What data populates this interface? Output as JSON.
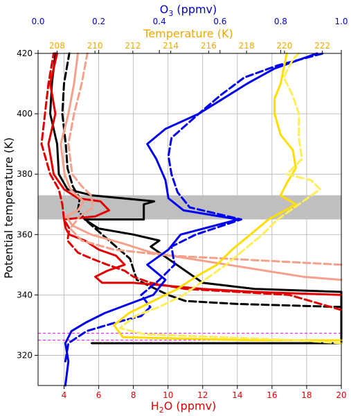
{
  "chart_data": {
    "type": "line",
    "ylabel": "Potential temperature (K)",
    "bottom_axis": {
      "label_main": "H",
      "label_sub": "2",
      "label_rest": "O (ppmv)",
      "range": [
        2.5,
        20
      ],
      "ticks": [
        4,
        6,
        8,
        10,
        12,
        14,
        16,
        18,
        20
      ],
      "color": "#e00000"
    },
    "top_axis_o3": {
      "label_main": "O",
      "label_sub": "3",
      "label_rest": " (ppmv)",
      "range": [
        0,
        1
      ],
      "ticks": [
        0.0,
        0.2,
        0.4,
        0.6,
        0.8,
        1.0
      ],
      "color": "#0000cc"
    },
    "top_axis_temp": {
      "label": "Temperature (K)",
      "range": [
        207.0,
        223.0
      ],
      "ticks": [
        208,
        210,
        212,
        214,
        216,
        218,
        220,
        222
      ],
      "color": "#f0a800"
    },
    "yaxis": {
      "range": [
        310,
        420
      ],
      "ticks": [
        320,
        340,
        360,
        380,
        400,
        420
      ]
    },
    "grid": true,
    "band": {
      "y0": 365,
      "y1": 373,
      "color": "#bfbfbf"
    },
    "hlines": [
      {
        "y": 327.3,
        "color": "#ff00ff",
        "style": "dashed"
      },
      {
        "y": 325.0,
        "color": "#ff00ff",
        "style": "dashed"
      }
    ],
    "series": [
      {
        "axis": "h2o",
        "color": "#000000",
        "style": "solid",
        "points": [
          [
            5.6,
            324
          ],
          [
            20,
            324
          ],
          [
            20,
            341
          ],
          [
            15,
            342
          ],
          [
            12,
            344
          ],
          [
            10.5,
            350
          ],
          [
            9,
            356
          ],
          [
            9.5,
            358
          ],
          [
            8,
            360
          ],
          [
            6,
            362
          ],
          [
            5.2,
            365
          ],
          [
            8.6,
            365
          ],
          [
            8.6,
            370
          ],
          [
            9.2,
            371
          ],
          [
            5.6,
            373
          ],
          [
            4.2,
            375
          ],
          [
            3.7,
            380
          ],
          [
            3.6,
            390
          ],
          [
            3.2,
            400
          ],
          [
            3.3,
            410
          ],
          [
            3.5,
            420
          ]
        ]
      },
      {
        "axis": "h2o",
        "color": "#000000",
        "style": "dashed",
        "points": [
          [
            20,
            336
          ],
          [
            14,
            337
          ],
          [
            11,
            338
          ],
          [
            10,
            340
          ],
          [
            8.2,
            345
          ],
          [
            7.8,
            352
          ],
          [
            7,
            356
          ],
          [
            6.2,
            360
          ],
          [
            5.2,
            365
          ],
          [
            4.8,
            368
          ],
          [
            4.9,
            372
          ],
          [
            4.5,
            376
          ],
          [
            4.2,
            382
          ],
          [
            4.1,
            390
          ],
          [
            3.9,
            400
          ],
          [
            4.0,
            410
          ],
          [
            4.3,
            420
          ]
        ]
      },
      {
        "axis": "h2o",
        "color": "#e00000",
        "style": "solid",
        "points": [
          [
            20,
            340
          ],
          [
            15,
            341
          ],
          [
            12,
            342
          ],
          [
            10,
            343
          ],
          [
            8,
            344
          ],
          [
            6.2,
            344
          ],
          [
            5.8,
            346
          ],
          [
            6.5,
            348
          ],
          [
            7.5,
            350
          ],
          [
            7.0,
            353
          ],
          [
            6.0,
            355
          ],
          [
            5.2,
            358
          ],
          [
            4.3,
            360
          ],
          [
            4.1,
            362
          ],
          [
            4.0,
            365
          ],
          [
            5.8,
            366
          ],
          [
            6.6,
            368
          ],
          [
            6.1,
            371
          ],
          [
            4.8,
            372
          ],
          [
            4.0,
            375
          ],
          [
            3.4,
            380
          ],
          [
            3.1,
            390
          ],
          [
            3.5,
            400
          ],
          [
            3.2,
            410
          ],
          [
            3.6,
            420
          ]
        ]
      },
      {
        "axis": "h2o",
        "color": "#e00000",
        "style": "dashed",
        "points": [
          [
            20,
            335
          ],
          [
            17,
            340
          ],
          [
            14,
            341
          ],
          [
            11,
            342
          ],
          [
            9,
            344
          ],
          [
            8,
            346
          ],
          [
            7.5,
            348
          ],
          [
            6.5,
            350
          ],
          [
            5.6,
            352
          ],
          [
            4.8,
            354
          ],
          [
            4.2,
            358
          ],
          [
            4.3,
            362
          ],
          [
            4.0,
            365
          ],
          [
            3.9,
            370
          ],
          [
            3.7,
            375
          ],
          [
            3.2,
            380
          ],
          [
            2.7,
            390
          ],
          [
            2.9,
            400
          ],
          [
            3.1,
            410
          ],
          [
            3.4,
            420
          ]
        ]
      },
      {
        "axis": "temp",
        "color": "#f4a08a",
        "style": "solid",
        "points": [
          [
            223,
            345
          ],
          [
            221,
            346
          ],
          [
            219,
            348
          ],
          [
            217,
            350
          ],
          [
            215,
            352
          ],
          [
            213,
            354
          ],
          [
            211.5,
            357
          ],
          [
            209.8,
            360
          ],
          [
            208.8,
            363
          ],
          [
            208.5,
            366
          ],
          [
            209.1,
            368
          ],
          [
            209.4,
            371
          ],
          [
            208.7,
            375
          ],
          [
            208.4,
            380
          ],
          [
            208.2,
            390
          ],
          [
            208.6,
            400
          ],
          [
            208.9,
            410
          ],
          [
            209.1,
            420
          ]
        ]
      },
      {
        "axis": "temp",
        "color": "#f4a08a",
        "style": "dashed",
        "points": [
          [
            223,
            350
          ],
          [
            220,
            351
          ],
          [
            217,
            352
          ],
          [
            214,
            353
          ],
          [
            211,
            355
          ],
          [
            209.3,
            358
          ],
          [
            208.7,
            362
          ],
          [
            209.2,
            366
          ],
          [
            209.9,
            369
          ],
          [
            209.8,
            373
          ],
          [
            209.3,
            376
          ],
          [
            208.8,
            380
          ],
          [
            208.6,
            390
          ],
          [
            208.9,
            400
          ],
          [
            209.3,
            410
          ],
          [
            209.6,
            420
          ]
        ]
      },
      {
        "axis": "o3",
        "color": "#0000ee",
        "style": "solid",
        "points": [
          [
            0.09,
            310
          ],
          [
            0.1,
            318
          ],
          [
            0.09,
            324
          ],
          [
            0.11,
            328
          ],
          [
            0.16,
            331
          ],
          [
            0.22,
            334
          ],
          [
            0.3,
            337
          ],
          [
            0.38,
            340
          ],
          [
            0.42,
            345
          ],
          [
            0.36,
            350
          ],
          [
            0.43,
            355
          ],
          [
            0.47,
            360
          ],
          [
            0.66,
            365
          ],
          [
            0.48,
            368
          ],
          [
            0.43,
            372
          ],
          [
            0.42,
            378
          ],
          [
            0.39,
            385
          ],
          [
            0.36,
            390
          ],
          [
            0.42,
            395
          ],
          [
            0.53,
            400
          ],
          [
            0.61,
            405
          ],
          [
            0.69,
            410
          ],
          [
            0.78,
            415
          ],
          [
            0.92,
            420
          ]
        ]
      },
      {
        "axis": "o3",
        "color": "#0000ee",
        "style": "dashed",
        "points": [
          [
            0.09,
            318
          ],
          [
            0.1,
            324
          ],
          [
            0.16,
            328
          ],
          [
            0.26,
            331
          ],
          [
            0.34,
            333
          ],
          [
            0.37,
            336
          ],
          [
            0.34,
            340
          ],
          [
            0.4,
            345
          ],
          [
            0.45,
            350
          ],
          [
            0.44,
            356
          ],
          [
            0.52,
            360
          ],
          [
            0.67,
            365
          ],
          [
            0.5,
            369
          ],
          [
            0.46,
            374
          ],
          [
            0.44,
            380
          ],
          [
            0.43,
            386
          ],
          [
            0.44,
            392
          ],
          [
            0.53,
            400
          ],
          [
            0.6,
            406
          ],
          [
            0.68,
            412
          ],
          [
            0.79,
            416
          ],
          [
            0.94,
            420
          ]
        ]
      },
      {
        "axis": "o3",
        "color": "#ffdd00",
        "style": "solid",
        "points": [
          [
            1.0,
            325
          ],
          [
            0.7,
            325
          ],
          [
            0.28,
            326
          ],
          [
            0.25,
            330
          ],
          [
            0.3,
            334
          ],
          [
            0.38,
            338
          ],
          [
            0.46,
            342
          ],
          [
            0.52,
            346
          ],
          [
            0.59,
            350
          ],
          [
            0.64,
            355
          ],
          [
            0.7,
            360
          ],
          [
            0.76,
            365
          ],
          [
            0.85,
            370
          ],
          [
            0.8,
            373
          ],
          [
            0.82,
            377
          ],
          [
            0.85,
            382
          ],
          [
            0.84,
            388
          ],
          [
            0.8,
            393
          ],
          [
            0.78,
            400
          ],
          [
            0.78,
            405
          ],
          [
            0.8,
            410
          ],
          [
            0.81,
            415
          ],
          [
            0.82,
            420
          ]
        ]
      },
      {
        "axis": "o3",
        "color": "#ffee55",
        "style": "dashed",
        "points": [
          [
            1.0,
            324
          ],
          [
            0.85,
            325
          ],
          [
            0.35,
            327
          ],
          [
            0.27,
            329
          ],
          [
            0.32,
            333
          ],
          [
            0.4,
            336
          ],
          [
            0.48,
            340
          ],
          [
            0.55,
            345
          ],
          [
            0.62,
            350
          ],
          [
            0.68,
            355
          ],
          [
            0.74,
            360
          ],
          [
            0.79,
            365
          ],
          [
            0.86,
            370
          ],
          [
            0.93,
            375
          ],
          [
            0.9,
            378
          ],
          [
            0.82,
            380
          ],
          [
            0.87,
            385
          ],
          [
            0.86,
            392
          ],
          [
            0.86,
            400
          ],
          [
            0.84,
            406
          ],
          [
            0.81,
            412
          ],
          [
            0.84,
            418
          ],
          [
            0.86,
            420
          ]
        ]
      }
    ]
  }
}
